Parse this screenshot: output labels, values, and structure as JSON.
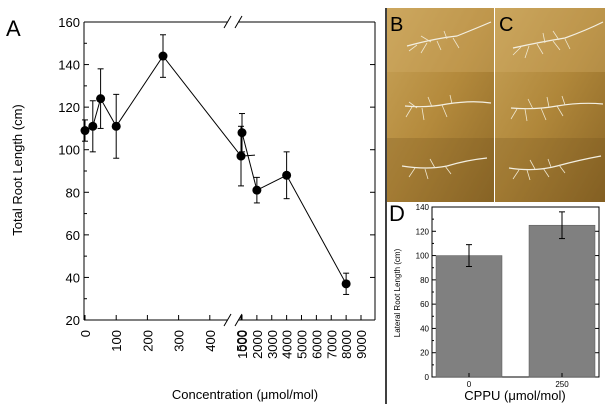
{
  "panels": {
    "a": "A",
    "b": "B",
    "c": "C",
    "d": "D"
  },
  "chart_data": [
    {
      "type": "line",
      "panel": "A",
      "ylabel": "Total Root Length (cm)",
      "xlabel": "Concentration (μmol/mol)",
      "ylim": [
        20,
        160
      ],
      "yticks": [
        20,
        40,
        60,
        80,
        100,
        120,
        140,
        160
      ],
      "xbreak": true,
      "segments": [
        {
          "xticks": [
            0,
            100,
            200,
            300,
            400,
            500
          ],
          "points": [
            {
              "x": 0,
              "y": 109,
              "err": 5
            },
            {
              "x": 25,
              "y": 111,
              "err": 12
            },
            {
              "x": 50,
              "y": 124,
              "err": 14
            },
            {
              "x": 100,
              "y": 111,
              "err": 15
            },
            {
              "x": 250,
              "y": 144,
              "err": 10
            },
            {
              "x": 500,
              "y": 97,
              "err": 14
            }
          ]
        },
        {
          "xticks": [
            1000,
            2000,
            3000,
            4000,
            5000,
            6000,
            7000,
            8000,
            9000
          ],
          "points": [
            {
              "x": 1000,
              "y": 108,
              "err": 9
            },
            {
              "x": 2000,
              "y": 81,
              "err": 6
            },
            {
              "x": 4000,
              "y": 88,
              "err": 11
            },
            {
              "x": 8000,
              "y": 37,
              "err": 5
            }
          ]
        }
      ]
    },
    {
      "type": "bar",
      "panel": "D",
      "ylabel": "Lateral Root Length (cm)",
      "xlabel": "CPPU (μmol/mol)",
      "categories": [
        "0",
        "250"
      ],
      "values": [
        100,
        125
      ],
      "errors": [
        9,
        11
      ],
      "ylim": [
        0,
        140
      ],
      "yticks": [
        0,
        20,
        40,
        60,
        80,
        100,
        120,
        140
      ],
      "bar_color": "#808080"
    }
  ]
}
